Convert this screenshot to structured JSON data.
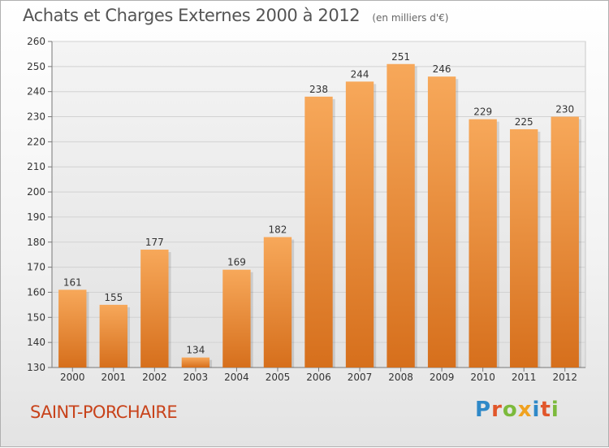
{
  "header": {
    "title": "Achats et Charges Externes 2000 à 2012",
    "subtitle": "(en milliers d'€)"
  },
  "footer": {
    "commune": "SAINT-PORCHAIRE",
    "logo_letters": [
      "P",
      "r",
      "o",
      "x",
      "i",
      "t",
      "i"
    ]
  },
  "colors": {
    "bar_light": "#f7a85a",
    "bar_dark": "#d66f1c",
    "commune_text": "#c8431b"
  },
  "chart_data": {
    "type": "bar",
    "categories": [
      "2000",
      "2001",
      "2002",
      "2003",
      "2004",
      "2005",
      "2006",
      "2007",
      "2008",
      "2009",
      "2010",
      "2011",
      "2012"
    ],
    "values": [
      161,
      155,
      177,
      134,
      169,
      182,
      238,
      244,
      251,
      246,
      229,
      225,
      230
    ],
    "ylim": [
      130,
      260
    ],
    "yticks": [
      130,
      140,
      150,
      160,
      170,
      180,
      190,
      200,
      210,
      220,
      230,
      240,
      250,
      260
    ],
    "grid": true,
    "title": "Achats et Charges Externes 2000 à 2012",
    "xlabel": "",
    "ylabel": ""
  }
}
